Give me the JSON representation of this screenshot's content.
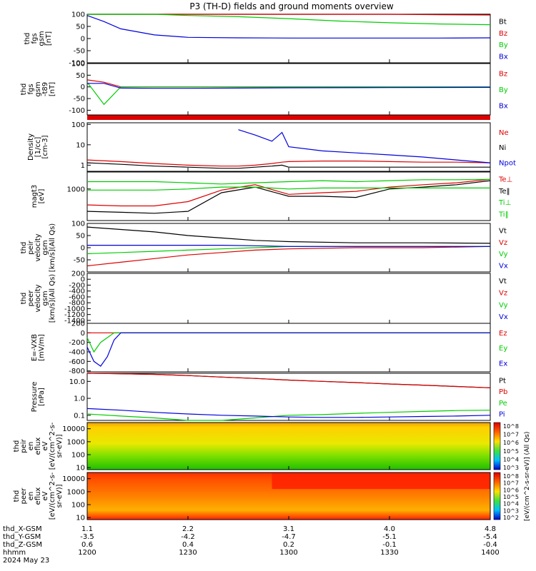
{
  "title": "P3 (TH-D) fields and ground moments overview",
  "colors": {
    "black": "#000000",
    "red": "#dd0000",
    "green": "#00cc00",
    "blue": "#0000dd"
  },
  "footer": {
    "rows": [
      {
        "label": "thd_X-GSM",
        "values": [
          "1.1",
          "2.2",
          "3.1",
          "4.0",
          "4.8"
        ]
      },
      {
        "label": "thd_Y-GSM",
        "values": [
          "-3.5",
          "-4.2",
          "-4.7",
          "-5.1",
          "-5.4"
        ]
      },
      {
        "label": "thd_Z-GSM",
        "values": [
          "0.6",
          "0.4",
          "0.2",
          "-0.1",
          "-0.4"
        ]
      },
      {
        "label": "hhmm",
        "values": [
          "1200",
          "1230",
          "1300",
          "1330",
          "1400"
        ]
      }
    ],
    "date": "2024 May 23"
  },
  "colorbar": {
    "ticks": [
      "10^8",
      "10^7",
      "10^6",
      "10^5",
      "10^4",
      "10^3"
    ],
    "ticks2": [
      "10^8",
      "10^7",
      "10^6",
      "10^5",
      "10^4",
      "10^3",
      "10^2"
    ],
    "label": "[eV/(cm^2-s-sr-eV)]",
    "label2": "[eV/(cm^2-s-sr-eV)] (All Qs)"
  },
  "chart_data": [
    {
      "type": "line",
      "panel": "fgs_gsm",
      "ylabel": [
        "thd",
        "fgs",
        "gsm",
        "[nT]"
      ],
      "ylim": [
        -100,
        100
      ],
      "yticks": [
        "100",
        "50",
        "0",
        "-50",
        "-100"
      ],
      "legend": [
        {
          "name": "Bt",
          "color": "black"
        },
        {
          "name": "Bz",
          "color": "red"
        },
        {
          "name": "By",
          "color": "green"
        },
        {
          "name": "Bx",
          "color": "blue"
        }
      ],
      "x": [
        1200,
        1205,
        1210,
        1220,
        1230,
        1245,
        1300,
        1315,
        1330,
        1345,
        1400
      ],
      "series": [
        {
          "name": "Bt",
          "values": [
            130,
            125,
            122,
            118,
            115,
            112,
            110,
            108,
            106,
            104,
            102
          ]
        },
        {
          "name": "Bz",
          "values": [
            120,
            115,
            112,
            108,
            106,
            104,
            103,
            101,
            100,
            98,
            97
          ]
        },
        {
          "name": "By",
          "values": [
            125,
            118,
            110,
            100,
            95,
            90,
            82,
            72,
            65,
            60,
            57
          ]
        },
        {
          "name": "Bx",
          "values": [
            95,
            70,
            40,
            15,
            5,
            3,
            2,
            2,
            2,
            2,
            3
          ]
        }
      ]
    },
    {
      "type": "line",
      "panel": "fgs_gsm_minus_t89",
      "ylabel": [
        "thd",
        "fgs",
        "gsm",
        "-t89",
        "[nT]"
      ],
      "ylim": [
        -120,
        100
      ],
      "yticks": [
        "100",
        "50",
        "0",
        "-50",
        "-100"
      ],
      "legend": [
        {
          "name": "Bz",
          "color": "red"
        },
        {
          "name": "By",
          "color": "green"
        },
        {
          "name": "Bx",
          "color": "blue"
        }
      ],
      "x": [
        1200,
        1205,
        1210,
        1220,
        1230,
        1245,
        1300,
        1330,
        1400
      ],
      "series": [
        {
          "name": "Bz",
          "values": [
            30,
            20,
            0,
            0,
            0,
            0,
            0,
            0,
            0
          ]
        },
        {
          "name": "By",
          "values": [
            20,
            -75,
            0,
            0,
            0,
            0,
            0,
            0,
            0
          ]
        },
        {
          "name": "Bx",
          "values": [
            15,
            15,
            -5,
            -6,
            -6,
            -5,
            -4,
            -3,
            -2
          ]
        }
      ]
    },
    {
      "type": "line",
      "panel": "density",
      "ylabel": [
        "Density",
        "[1/cc]",
        "[cm-3]"
      ],
      "yscale": "log",
      "ylim": [
        0.5,
        120
      ],
      "yticks": [
        "100",
        "10",
        "1"
      ],
      "legend": [
        {
          "name": "Ne",
          "color": "red"
        },
        {
          "name": "Ni",
          "color": "black"
        },
        {
          "name": "Npot",
          "color": "blue"
        }
      ],
      "x": [
        1200,
        1210,
        1220,
        1230,
        1240,
        1245,
        1250,
        1255,
        1258,
        1300,
        1310,
        1320,
        1330,
        1340,
        1350,
        1400
      ],
      "series": [
        {
          "name": "Ne",
          "values": [
            1.8,
            1.5,
            1.2,
            1.0,
            0.9,
            0.9,
            1.0,
            1.2,
            1.4,
            1.5,
            1.6,
            1.6,
            1.5,
            1.4,
            1.4,
            1.3
          ]
        },
        {
          "name": "Ni",
          "values": [
            1.3,
            1.1,
            0.9,
            0.8,
            0.7,
            0.7,
            0.8,
            0.9,
            1.0,
            0.8,
            0.8,
            0.8,
            0.8,
            0.8,
            0.8,
            0.8
          ]
        },
        {
          "name": "Npot",
          "values": [
            null,
            null,
            null,
            null,
            null,
            55,
            30,
            15,
            40,
            8,
            5,
            4,
            3.2,
            2.5,
            1.8,
            1.3
          ]
        }
      ]
    },
    {
      "type": "line",
      "panel": "temperature",
      "ylabel": [
        "magt3",
        "[eV]"
      ],
      "yscale": "log",
      "ylim": [
        50,
        5000
      ],
      "yticks": [
        "1000"
      ],
      "legend": [
        {
          "name": "Te⊥",
          "color": "red"
        },
        {
          "name": "Te‖",
          "color": "black"
        },
        {
          "name": "Ti⊥",
          "color": "green"
        },
        {
          "name": "Ti‖",
          "color": "green"
        }
      ],
      "x": [
        1200,
        1210,
        1220,
        1230,
        1240,
        1250,
        1300,
        1310,
        1320,
        1330,
        1340,
        1350,
        1400
      ],
      "series": [
        {
          "name": "Te⊥",
          "values": [
            220,
            200,
            200,
            300,
            900,
            1500,
            600,
            700,
            800,
            1200,
            1500,
            1800,
            2500
          ]
        },
        {
          "name": "Te‖",
          "values": [
            120,
            110,
            100,
            120,
            700,
            1200,
            500,
            500,
            450,
            1000,
            1200,
            1500,
            2200
          ]
        },
        {
          "name": "Ti⊥",
          "values": [
            2000,
            2000,
            2000,
            1800,
            1600,
            1800,
            2000,
            2200,
            2000,
            2200,
            2400,
            2400,
            2500
          ]
        },
        {
          "name": "Ti‖",
          "values": [
            900,
            900,
            900,
            1000,
            1200,
            1200,
            1000,
            1100,
            1100,
            1100,
            1100,
            1100,
            1100
          ]
        }
      ]
    },
    {
      "type": "line",
      "panel": "peir_velocity",
      "ylabel": [
        "thd",
        "peir",
        "velocity",
        "gsm",
        "[km/s](All Qs)"
      ],
      "ylim": [
        -100,
        100
      ],
      "yticks": [
        "100",
        "50",
        "0",
        "-50"
      ],
      "legend": [
        {
          "name": "Vt",
          "color": "black"
        },
        {
          "name": "Vz",
          "color": "red"
        },
        {
          "name": "Vy",
          "color": "green"
        },
        {
          "name": "Vx",
          "color": "blue"
        }
      ],
      "x": [
        1200,
        1210,
        1220,
        1230,
        1240,
        1250,
        1300,
        1320,
        1340,
        1400
      ],
      "series": [
        {
          "name": "Vt",
          "values": [
            85,
            75,
            65,
            50,
            40,
            30,
            25,
            20,
            20,
            18
          ]
        },
        {
          "name": "Vz",
          "values": [
            -75,
            -60,
            -45,
            -30,
            -20,
            -10,
            -5,
            0,
            0,
            5
          ]
        },
        {
          "name": "Vy",
          "values": [
            -25,
            -20,
            -15,
            -10,
            -5,
            0,
            5,
            5,
            5,
            5
          ]
        },
        {
          "name": "Vx",
          "values": [
            10,
            10,
            10,
            10,
            10,
            8,
            5,
            5,
            5,
            5
          ]
        }
      ]
    },
    {
      "type": "line",
      "panel": "peer_velocity",
      "ylabel": [
        "thd",
        "peer",
        "velocity",
        "gsm",
        "[km/s](All Qs)"
      ],
      "ylim": [
        -1500,
        200
      ],
      "yticks": [
        "200",
        "0",
        "-200",
        "-400",
        "-600",
        "-800",
        "-1000",
        "-1200",
        "-1400"
      ],
      "legend": [
        {
          "name": "Vt",
          "color": "black"
        },
        {
          "name": "Vz",
          "color": "red"
        },
        {
          "name": "Vy",
          "color": "green"
        },
        {
          "name": "Vx",
          "color": "blue"
        }
      ],
      "series": []
    },
    {
      "type": "line",
      "panel": "e_vxb",
      "ylabel": [
        "E=-VXB",
        "[mV/m]"
      ],
      "ylim": [
        -820,
        200
      ],
      "yticks": [
        "200",
        "0",
        "-200",
        "-400",
        "-600",
        "-800"
      ],
      "legend": [
        {
          "name": "Ez",
          "color": "red"
        },
        {
          "name": "Ey",
          "color": "green"
        },
        {
          "name": "Ex",
          "color": "blue"
        }
      ],
      "x": [
        1200,
        1202,
        1204,
        1206,
        1208,
        1210,
        1215,
        1230,
        1300,
        1400
      ],
      "series": [
        {
          "name": "Ez",
          "values": [
            0,
            0,
            0,
            0,
            0,
            0,
            0,
            0,
            0,
            0
          ]
        },
        {
          "name": "Ey",
          "values": [
            -100,
            -400,
            -200,
            -100,
            0,
            0,
            0,
            0,
            0,
            0
          ]
        },
        {
          "name": "Ex",
          "values": [
            -300,
            -600,
            -700,
            -500,
            -150,
            0,
            0,
            0,
            0,
            0
          ]
        }
      ]
    },
    {
      "type": "line",
      "panel": "pressure",
      "ylabel": [
        "Pressure",
        "[nPa]"
      ],
      "yscale": "log",
      "ylim": [
        0.05,
        30
      ],
      "yticks": [
        "10.0",
        "1.0",
        "0.1"
      ],
      "legend": [
        {
          "name": "Pt",
          "color": "black"
        },
        {
          "name": "Pb",
          "color": "red"
        },
        {
          "name": "Pe",
          "color": "green"
        },
        {
          "name": "Pi",
          "color": "blue"
        }
      ],
      "x": [
        1200,
        1210,
        1220,
        1230,
        1240,
        1250,
        1300,
        1310,
        1320,
        1330,
        1340,
        1350,
        1400
      ],
      "series": [
        {
          "name": "Pt",
          "values": [
            30,
            28,
            26,
            22,
            18,
            15,
            12,
            10,
            8.5,
            7,
            6,
            5,
            4.2
          ]
        },
        {
          "name": "Pb",
          "values": [
            30,
            28,
            26,
            22,
            18,
            15,
            12,
            10,
            8.5,
            7,
            6,
            5,
            4.2
          ]
        },
        {
          "name": "Pe",
          "values": [
            0.12,
            0.09,
            0.07,
            0.05,
            0.05,
            0.07,
            0.1,
            0.11,
            0.13,
            0.15,
            0.17,
            0.19,
            0.2
          ]
        },
        {
          "name": "Pi",
          "values": [
            0.25,
            0.2,
            0.15,
            0.12,
            0.1,
            0.09,
            0.08,
            0.075,
            0.075,
            0.08,
            0.085,
            0.09,
            0.1
          ]
        }
      ]
    },
    {
      "type": "heatmap",
      "panel": "peir_en_eflux",
      "ylabel": [
        "thd",
        "peir",
        "en",
        "eflux",
        "eV",
        "[eV/(cm^2-s-",
        "sr-eV)]"
      ],
      "yscale": "log",
      "ylim": [
        7,
        30000
      ],
      "yticks": [
        "10000",
        "1000",
        "100",
        "10"
      ]
    },
    {
      "type": "heatmap",
      "panel": "peer_en_eflux",
      "ylabel": [
        "thd",
        "peer",
        "en",
        "eflux",
        "eV",
        "[eV/(cm^2-s-",
        "sr-eV)]"
      ],
      "yscale": "log",
      "ylim": [
        7,
        30000
      ],
      "yticks": [
        "10000",
        "1000",
        "100",
        "10"
      ]
    }
  ]
}
